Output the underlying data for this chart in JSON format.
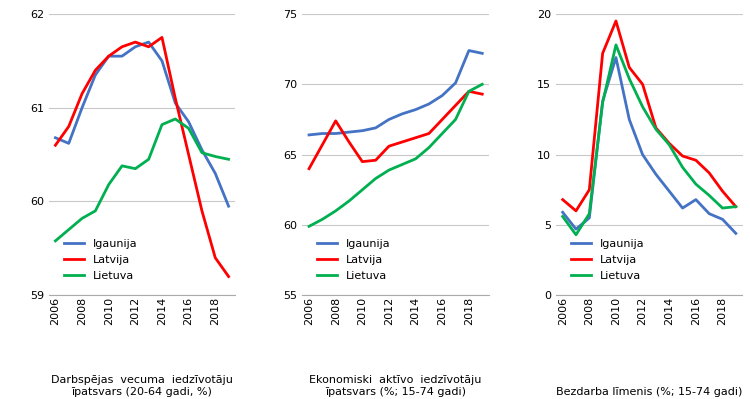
{
  "years": [
    2006,
    2007,
    2008,
    2009,
    2010,
    2011,
    2012,
    2013,
    2014,
    2015,
    2016,
    2017,
    2018,
    2019
  ],
  "chart1": {
    "igaunija": [
      60.68,
      60.62,
      61.0,
      61.35,
      61.55,
      61.55,
      61.65,
      61.7,
      61.5,
      61.05,
      60.85,
      60.55,
      60.3,
      59.95
    ],
    "latvija": [
      60.6,
      60.8,
      61.15,
      61.4,
      61.55,
      61.65,
      61.7,
      61.65,
      61.75,
      61.1,
      60.5,
      59.9,
      59.4,
      59.2
    ],
    "lietuva": [
      59.58,
      59.7,
      59.82,
      59.9,
      60.18,
      60.38,
      60.35,
      60.45,
      60.82,
      60.88,
      60.78,
      60.52,
      60.48,
      60.45
    ],
    "ylim": [
      59,
      62
    ],
    "yticks": [
      59,
      60,
      61,
      62
    ],
    "xlabel": "Darbspējas  vecuma  iedzīvotāju\nīpatsvars (20-64 gadi, %)"
  },
  "chart2": {
    "igaunija": [
      66.4,
      66.5,
      66.5,
      66.6,
      66.7,
      66.9,
      67.5,
      67.9,
      68.2,
      68.6,
      69.2,
      70.1,
      72.4,
      72.2
    ],
    "latvija": [
      64.0,
      65.7,
      67.4,
      65.9,
      64.5,
      64.6,
      65.6,
      65.9,
      66.2,
      66.5,
      67.5,
      68.5,
      69.5,
      69.3
    ],
    "lietuva": [
      59.9,
      60.4,
      61.0,
      61.7,
      62.5,
      63.3,
      63.9,
      64.3,
      64.7,
      65.5,
      66.5,
      67.5,
      69.5,
      70.0
    ],
    "ylim": [
      55,
      75
    ],
    "yticks": [
      55,
      60,
      65,
      70,
      75
    ],
    "xlabel": "Ekonomiski  aktīvo  iedzīvotāju\nīpatsvars (%; 15-74 gadi)"
  },
  "chart3": {
    "igaunija": [
      5.9,
      4.7,
      5.5,
      13.8,
      16.9,
      12.5,
      10.0,
      8.6,
      7.4,
      6.2,
      6.8,
      5.8,
      5.4,
      4.4
    ],
    "latvija": [
      6.8,
      6.0,
      7.5,
      17.2,
      19.5,
      16.2,
      15.0,
      11.9,
      10.8,
      9.9,
      9.6,
      8.7,
      7.4,
      6.3
    ],
    "lietuva": [
      5.6,
      4.3,
      5.8,
      13.7,
      17.8,
      15.4,
      13.4,
      11.8,
      10.7,
      9.1,
      7.9,
      7.1,
      6.2,
      6.3
    ],
    "ylim": [
      0,
      20
    ],
    "yticks": [
      0,
      5,
      10,
      15,
      20
    ],
    "xlabel": "Bezdarba līmenis (%; 15-74 gadi)"
  },
  "colors": {
    "igaunija": "#4472C4",
    "latvija": "#FF0000",
    "lietuva": "#00B050"
  },
  "x_tick_years": [
    2006,
    2008,
    2010,
    2012,
    2014,
    2016,
    2018
  ],
  "line_width": 2.0,
  "background": "#FFFFFF",
  "grid_color": "#C8C8C8"
}
